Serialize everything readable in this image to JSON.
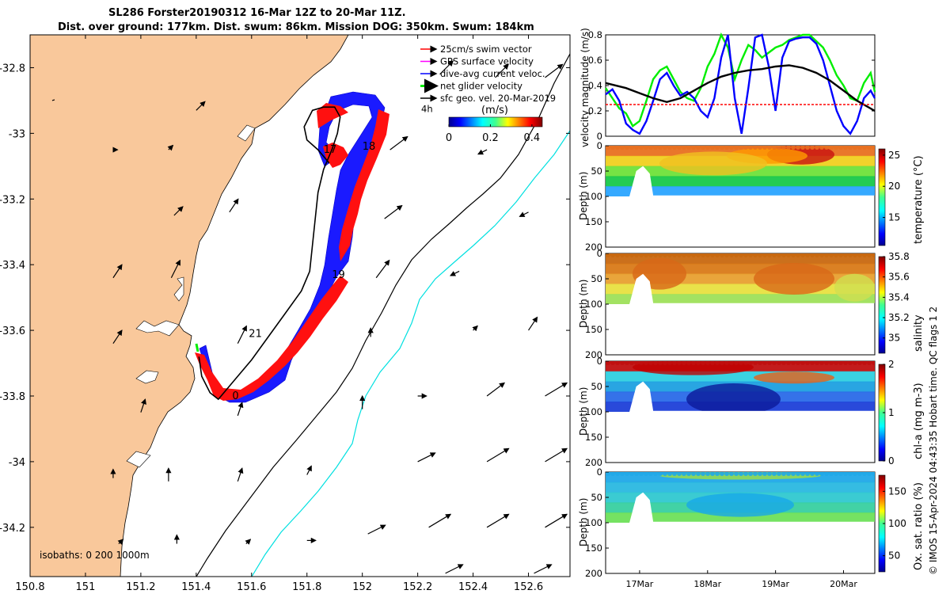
{
  "titles": {
    "line1": "SL286 Forster20190312 16-Mar 12Z to 20-Mar 11Z.",
    "line2": "Dist. over ground: 177km. Dist. swum: 86km. Mission DOG: 350km. Swum: 184km"
  },
  "credit": "© IMOS 15-Apr-2024 04:43:35 Hobart time. QC flags 1  2",
  "colors": {
    "land": "#f9c89b",
    "swim": "#ff0000",
    "gps": "#ff00ff",
    "dive_current": "#0000ff",
    "net_velocity": "#00ee00",
    "sfc_geo": "#000000",
    "isobath_200": "#000000",
    "isobath_1000": "#00e0e0"
  },
  "chart_data": [
    {
      "type": "map",
      "name": "track-map",
      "xlim": [
        150.8,
        152.75
      ],
      "ylim": [
        -34.35,
        -32.7
      ],
      "xticks": [
        "150.8",
        "151",
        "151.2",
        "151.4",
        "151.6",
        "151.8",
        "152",
        "152.2",
        "152.4",
        "152.6"
      ],
      "yticks": [
        "-32.8",
        "-33",
        "-33.2",
        "-33.4",
        "-33.6",
        "-33.8",
        "-34",
        "-34.2"
      ],
      "legend": [
        {
          "label": "25cm/s swim vector",
          "color": "#ff0000"
        },
        {
          "label": "GPS surface velocity",
          "color": "#ff00ff"
        },
        {
          "label": "dive-avg current veloc.",
          "color": "#0000ff"
        },
        {
          "label": "net glider velocity",
          "color": "#00ee00"
        },
        {
          "label": "sfc geo. vel. 20-Mar-2019",
          "color": "#000000"
        },
        {
          "label": "4h",
          "color": "#000000"
        }
      ],
      "colorbar": {
        "label": "(m/s)",
        "ticks": [
          "0",
          "0.2",
          "0.4"
        ],
        "range": [
          0,
          0.45
        ]
      },
      "isobaths_label": "isobaths: 0   200  1000m",
      "day_labels": [
        {
          "text": "17",
          "lon": 151.86,
          "lat": -33.06
        },
        {
          "text": "18",
          "lon": 152.0,
          "lat": -33.05
        },
        {
          "text": "19",
          "lon": 151.89,
          "lat": -33.44
        },
        {
          "text": "21",
          "lon": 151.59,
          "lat": -33.62
        },
        {
          "text": "0",
          "lon": 151.53,
          "lat": -33.81
        }
      ],
      "track": [
        [
          151.88,
          -33.09
        ],
        [
          151.84,
          -33.05
        ],
        [
          151.8,
          -33.02
        ],
        [
          151.79,
          -32.98
        ],
        [
          151.82,
          -32.93
        ],
        [
          151.86,
          -32.92
        ],
        [
          151.9,
          -32.92
        ],
        [
          151.92,
          -32.95
        ],
        [
          151.91,
          -33.0
        ],
        [
          151.89,
          -33.05
        ],
        [
          151.86,
          -33.11
        ],
        [
          151.84,
          -33.18
        ],
        [
          151.83,
          -33.26
        ],
        [
          151.82,
          -33.34
        ],
        [
          151.81,
          -33.42
        ],
        [
          151.78,
          -33.48
        ],
        [
          151.72,
          -33.55
        ],
        [
          151.66,
          -33.62
        ],
        [
          151.6,
          -33.69
        ],
        [
          151.53,
          -33.76
        ],
        [
          151.48,
          -33.81
        ],
        [
          151.45,
          -33.79
        ],
        [
          151.42,
          -33.74
        ],
        [
          151.41,
          -33.68
        ]
      ],
      "sfc_geo_vectors": [
        {
          "lon": 150.88,
          "lat": -32.9,
          "u": 0.0,
          "v": 0.0
        },
        {
          "lon": 151.4,
          "lat": -32.93,
          "u": 0.02,
          "v": 0.02
        },
        {
          "lon": 152.28,
          "lat": -32.82,
          "u": 0.03,
          "v": 0.03
        },
        {
          "lon": 152.48,
          "lat": -32.83,
          "u": 0.03,
          "v": 0.03
        },
        {
          "lon": 152.66,
          "lat": -32.83,
          "u": 0.04,
          "v": 0.03
        },
        {
          "lon": 151.1,
          "lat": -33.05,
          "u": 0.01,
          "v": 0.0
        },
        {
          "lon": 151.3,
          "lat": -33.05,
          "u": 0.01,
          "v": 0.01
        },
        {
          "lon": 152.1,
          "lat": -33.05,
          "u": 0.04,
          "v": 0.03
        },
        {
          "lon": 152.45,
          "lat": -33.05,
          "u": -0.02,
          "v": -0.01
        },
        {
          "lon": 151.32,
          "lat": -33.25,
          "u": 0.02,
          "v": 0.02
        },
        {
          "lon": 151.52,
          "lat": -33.24,
          "u": 0.02,
          "v": 0.03
        },
        {
          "lon": 152.08,
          "lat": -33.26,
          "u": 0.04,
          "v": 0.03
        },
        {
          "lon": 152.6,
          "lat": -33.24,
          "u": -0.02,
          "v": -0.01
        },
        {
          "lon": 151.1,
          "lat": -33.44,
          "u": 0.02,
          "v": 0.03
        },
        {
          "lon": 151.31,
          "lat": -33.44,
          "u": 0.02,
          "v": 0.04
        },
        {
          "lon": 152.05,
          "lat": -33.44,
          "u": 0.03,
          "v": 0.04
        },
        {
          "lon": 152.35,
          "lat": -33.42,
          "u": -0.02,
          "v": -0.01
        },
        {
          "lon": 151.1,
          "lat": -33.64,
          "u": 0.02,
          "v": 0.03
        },
        {
          "lon": 151.55,
          "lat": -33.64,
          "u": 0.02,
          "v": 0.04
        },
        {
          "lon": 152.03,
          "lat": -33.62,
          "u": 0.0,
          "v": 0.02
        },
        {
          "lon": 152.4,
          "lat": -33.6,
          "u": 0.01,
          "v": 0.01
        },
        {
          "lon": 152.6,
          "lat": -33.6,
          "u": 0.02,
          "v": 0.03
        },
        {
          "lon": 151.2,
          "lat": -33.85,
          "u": 0.01,
          "v": 0.03
        },
        {
          "lon": 151.55,
          "lat": -33.86,
          "u": 0.01,
          "v": 0.03
        },
        {
          "lon": 152.0,
          "lat": -33.84,
          "u": 0.0,
          "v": 0.03
        },
        {
          "lon": 152.2,
          "lat": -33.8,
          "u": 0.02,
          "v": 0.0
        },
        {
          "lon": 152.45,
          "lat": -33.8,
          "u": 0.04,
          "v": 0.03
        },
        {
          "lon": 152.66,
          "lat": -33.8,
          "u": 0.05,
          "v": 0.03
        },
        {
          "lon": 151.1,
          "lat": -34.05,
          "u": 0.0,
          "v": 0.02
        },
        {
          "lon": 151.3,
          "lat": -34.06,
          "u": 0.0,
          "v": 0.03
        },
        {
          "lon": 151.55,
          "lat": -34.06,
          "u": 0.01,
          "v": 0.03
        },
        {
          "lon": 151.8,
          "lat": -34.04,
          "u": 0.01,
          "v": 0.02
        },
        {
          "lon": 152.2,
          "lat": -34.0,
          "u": 0.04,
          "v": 0.02
        },
        {
          "lon": 152.45,
          "lat": -34.0,
          "u": 0.05,
          "v": 0.03
        },
        {
          "lon": 152.66,
          "lat": -34.0,
          "u": 0.05,
          "v": 0.03
        },
        {
          "lon": 151.12,
          "lat": -34.25,
          "u": 0.01,
          "v": 0.01
        },
        {
          "lon": 151.33,
          "lat": -34.25,
          "u": 0.0,
          "v": 0.02
        },
        {
          "lon": 151.58,
          "lat": -34.25,
          "u": 0.01,
          "v": 0.01
        },
        {
          "lon": 151.8,
          "lat": -34.24,
          "u": 0.02,
          "v": 0.0
        },
        {
          "lon": 152.02,
          "lat": -34.22,
          "u": 0.04,
          "v": 0.02
        },
        {
          "lon": 152.24,
          "lat": -34.2,
          "u": 0.05,
          "v": 0.03
        },
        {
          "lon": 152.45,
          "lat": -34.2,
          "u": 0.05,
          "v": 0.03
        },
        {
          "lon": 152.66,
          "lat": -34.2,
          "u": 0.05,
          "v": 0.03
        },
        {
          "lon": 152.3,
          "lat": -34.34,
          "u": 0.04,
          "v": 0.02
        },
        {
          "lon": 152.62,
          "lat": -34.34,
          "u": 0.04,
          "v": 0.02
        }
      ]
    },
    {
      "type": "line",
      "name": "velocity-magnitude",
      "ylabel": "velocity magnitude (m/s)",
      "ylim": [
        0,
        0.8
      ],
      "yticks": [
        "0",
        "0.2",
        "0.4",
        "0.6",
        "0.8"
      ],
      "xlim": [
        16.5,
        20.46
      ],
      "series": [
        {
          "color": "#00ee00",
          "x": [
            16.5,
            16.6,
            16.7,
            16.8,
            16.9,
            17.0,
            17.1,
            17.2,
            17.3,
            17.4,
            17.5,
            17.6,
            17.7,
            17.8,
            17.9,
            18.0,
            18.1,
            18.2,
            18.3,
            18.4,
            18.5,
            18.6,
            18.7,
            18.8,
            18.9,
            19.0,
            19.1,
            19.2,
            19.3,
            19.4,
            19.5,
            19.6,
            19.7,
            19.8,
            19.9,
            20.0,
            20.1,
            20.2,
            20.3,
            20.4,
            20.46
          ],
          "y": [
            0.38,
            0.3,
            0.22,
            0.18,
            0.08,
            0.12,
            0.28,
            0.45,
            0.52,
            0.55,
            0.45,
            0.35,
            0.3,
            0.28,
            0.38,
            0.55,
            0.65,
            0.8,
            0.7,
            0.45,
            0.6,
            0.72,
            0.68,
            0.62,
            0.66,
            0.7,
            0.72,
            0.76,
            0.78,
            0.8,
            0.8,
            0.75,
            0.7,
            0.6,
            0.48,
            0.4,
            0.3,
            0.28,
            0.42,
            0.5,
            0.35
          ]
        },
        {
          "color": "#0000ff",
          "x": [
            16.5,
            16.6,
            16.7,
            16.8,
            16.9,
            17.0,
            17.1,
            17.2,
            17.3,
            17.4,
            17.5,
            17.6,
            17.7,
            17.8,
            17.9,
            18.0,
            18.1,
            18.2,
            18.3,
            18.4,
            18.5,
            18.6,
            18.7,
            18.8,
            18.9,
            19.0,
            19.1,
            19.2,
            19.3,
            19.4,
            19.5,
            19.6,
            19.7,
            19.8,
            19.9,
            20.0,
            20.1,
            20.2,
            20.3,
            20.4,
            20.46
          ],
          "y": [
            0.33,
            0.37,
            0.28,
            0.1,
            0.05,
            0.02,
            0.12,
            0.28,
            0.45,
            0.5,
            0.4,
            0.32,
            0.35,
            0.3,
            0.2,
            0.15,
            0.3,
            0.62,
            0.8,
            0.3,
            0.02,
            0.38,
            0.78,
            0.82,
            0.55,
            0.2,
            0.62,
            0.75,
            0.77,
            0.78,
            0.78,
            0.73,
            0.6,
            0.4,
            0.2,
            0.08,
            0.02,
            0.12,
            0.3,
            0.36,
            0.3
          ]
        },
        {
          "color": "#000000",
          "x": [
            16.5,
            16.8,
            17.0,
            17.2,
            17.4,
            17.6,
            17.8,
            18.0,
            18.2,
            18.4,
            18.6,
            18.8,
            19.0,
            19.2,
            19.4,
            19.6,
            19.8,
            20.0,
            20.2,
            20.46
          ],
          "y": [
            0.42,
            0.38,
            0.34,
            0.3,
            0.27,
            0.3,
            0.36,
            0.42,
            0.47,
            0.5,
            0.52,
            0.53,
            0.55,
            0.56,
            0.54,
            0.5,
            0.44,
            0.36,
            0.28,
            0.2
          ]
        },
        {
          "color": "#ff0000",
          "dashed": true,
          "x": [
            16.5,
            20.46
          ],
          "y": [
            0.25,
            0.25
          ]
        }
      ]
    },
    {
      "type": "heatmap",
      "name": "temperature-section",
      "ylabel": "Depth (m)",
      "clabel": "temperature (°C)",
      "ylim": [
        200,
        0
      ],
      "yticks": [
        "0",
        "50",
        "100",
        "150",
        "200"
      ],
      "cticks": [
        "25",
        "20",
        "15"
      ],
      "clim": [
        10.5,
        26
      ]
    },
    {
      "type": "heatmap",
      "name": "salinity-section",
      "ylabel": "Depth (m)",
      "clabel": "salinity",
      "ylim": [
        200,
        0
      ],
      "yticks": [
        "0",
        "50",
        "100",
        "150",
        "200"
      ],
      "cticks": [
        "35.8",
        "35.6",
        "35.4",
        "35.2",
        "35"
      ],
      "clim": [
        34.85,
        35.8
      ]
    },
    {
      "type": "heatmap",
      "name": "chla-section",
      "ylabel": "Depth (m)",
      "clabel": "chl-a (mg m-3)",
      "ylim": [
        200,
        0
      ],
      "yticks": [
        "0",
        "50",
        "100",
        "150",
        "200"
      ],
      "cticks": [
        "2",
        "1",
        "0"
      ],
      "clim": [
        0,
        2
      ]
    },
    {
      "type": "heatmap",
      "name": "oxygen-section",
      "ylabel": "Depth (m)",
      "clabel": "Ox. sat. ratio (%)",
      "ylim": [
        200,
        0
      ],
      "yticks": [
        "0",
        "50",
        "100",
        "150",
        "200"
      ],
      "cticks": [
        "150",
        "100",
        "50"
      ],
      "clim": [
        25,
        175
      ]
    }
  ],
  "time_axis": {
    "ticks": [
      "17Mar",
      "18Mar",
      "19Mar",
      "20Mar"
    ],
    "values": [
      17,
      18,
      19,
      20
    ]
  }
}
